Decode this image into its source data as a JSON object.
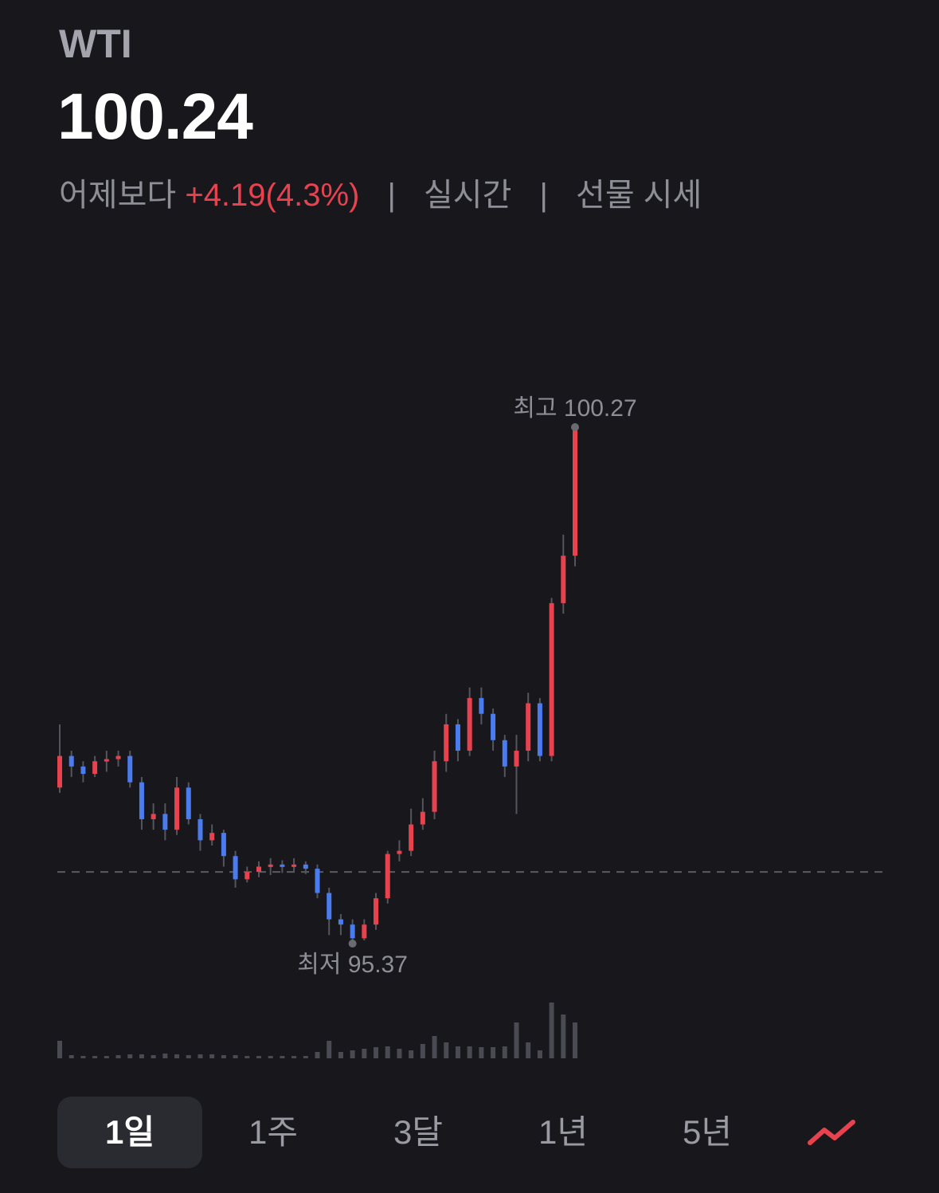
{
  "header": {
    "symbol": "WTI",
    "price": "100.24",
    "compare_label": "어제보다",
    "change": "+4.19(4.3%)",
    "separator": "|",
    "realtime": "실시간",
    "category": "선물 시세"
  },
  "chart_data": {
    "type": "candlestick",
    "open": [
      96.85,
      97.15,
      97.05,
      96.98,
      97.1,
      97.12,
      97.15,
      96.9,
      96.55,
      96.6,
      96.45,
      96.85,
      96.55,
      96.35,
      96.42,
      96.2,
      95.98,
      96.05,
      96.1,
      96.12,
      96.1,
      96.12,
      96.08,
      95.85,
      95.6,
      95.55,
      95.42,
      95.55,
      95.8,
      96.22,
      96.25,
      96.5,
      96.62,
      97.1,
      97.45,
      97.2,
      97.7,
      97.55,
      97.3,
      97.05,
      97.2,
      97.65,
      97.15,
      98.6,
      99.05
    ],
    "high": [
      97.45,
      97.2,
      97.1,
      97.15,
      97.2,
      97.2,
      97.2,
      96.95,
      96.7,
      96.7,
      96.95,
      96.9,
      96.6,
      96.5,
      96.45,
      96.25,
      96.1,
      96.15,
      96.18,
      96.16,
      96.18,
      96.15,
      96.12,
      95.9,
      95.65,
      95.6,
      95.6,
      95.85,
      96.25,
      96.35,
      96.65,
      96.75,
      97.2,
      97.55,
      97.5,
      97.8,
      97.8,
      97.6,
      97.35,
      97.35,
      97.75,
      97.7,
      98.65,
      99.25,
      100.27
    ],
    "low": [
      96.8,
      96.95,
      96.9,
      96.95,
      97.0,
      97.05,
      96.85,
      96.45,
      96.45,
      96.35,
      96.4,
      96.5,
      96.25,
      96.3,
      96.1,
      95.9,
      95.95,
      96.0,
      96.02,
      96.04,
      96.05,
      96.03,
      95.8,
      95.45,
      95.45,
      95.37,
      95.4,
      95.5,
      95.75,
      96.15,
      96.2,
      96.45,
      96.55,
      97.0,
      97.1,
      97.15,
      97.45,
      97.2,
      96.95,
      96.6,
      97.1,
      97.1,
      97.1,
      98.5,
      98.95
    ],
    "close": [
      97.15,
      97.05,
      96.98,
      97.1,
      97.12,
      97.15,
      96.9,
      96.55,
      96.6,
      96.45,
      96.85,
      96.55,
      96.35,
      96.42,
      96.2,
      95.98,
      96.05,
      96.1,
      96.12,
      96.1,
      96.12,
      96.08,
      95.85,
      95.6,
      95.55,
      95.42,
      95.55,
      95.8,
      96.22,
      96.25,
      96.5,
      96.62,
      97.1,
      97.45,
      97.2,
      97.7,
      97.55,
      97.3,
      97.05,
      97.2,
      97.65,
      97.15,
      98.6,
      99.05,
      100.24
    ],
    "volume": [
      22,
      4,
      3,
      3,
      3,
      4,
      5,
      5,
      4,
      6,
      5,
      4,
      5,
      5,
      4,
      4,
      3,
      3,
      3,
      3,
      3,
      3,
      8,
      22,
      8,
      10,
      12,
      14,
      15,
      12,
      10,
      18,
      28,
      20,
      15,
      15,
      14,
      14,
      15,
      45,
      20,
      10,
      70,
      55,
      45
    ],
    "ylim": [
      95.37,
      100.27
    ],
    "previous_close": 96.05,
    "high_label": "최고 100.27",
    "high_index": 44,
    "low_label": "최저 95.37",
    "low_index": 25,
    "up_color": "#e8424f",
    "down_color": "#4a7cf0",
    "volume_color": "#4a4a52"
  },
  "tabs": [
    {
      "label": "1일",
      "selected": true
    },
    {
      "label": "1주",
      "selected": false
    },
    {
      "label": "3달",
      "selected": false
    },
    {
      "label": "1년",
      "selected": false
    },
    {
      "label": "5년",
      "selected": false
    }
  ]
}
